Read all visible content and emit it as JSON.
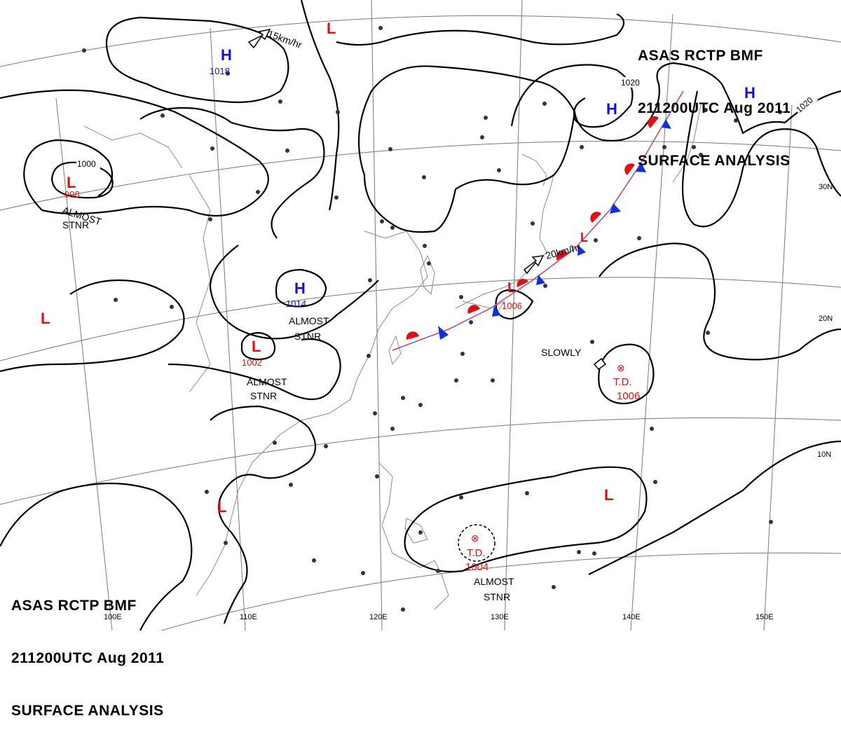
{
  "header": {
    "line1": "ASAS    RCTP    BMF",
    "line2": "211200UTC    Aug    2011",
    "line3": "SURFACE  ANALYSIS"
  },
  "colors": {
    "high": "#1010e0",
    "low": "#e01010",
    "isobar": "#000000",
    "coast": "#888888",
    "grid": "#666666"
  },
  "lat_labels": [
    "30N",
    "20N",
    "10N"
  ],
  "lon_labels": [
    "100E",
    "110E",
    "120E",
    "130E",
    "140E",
    "150E"
  ],
  "isobar_labels": [
    "1020",
    "1020",
    "1000"
  ],
  "systems": {
    "high1": {
      "symbol": "H",
      "pressure": "1018"
    },
    "high2": {
      "symbol": "H",
      "pressure": "1014"
    },
    "high3": {
      "symbol": "H"
    },
    "high4": {
      "symbol": "H"
    },
    "low_tibet": {
      "symbol": "L",
      "pressure": "998",
      "note": "ALMOST STNR"
    },
    "low_mongolia": {
      "symbol": "L"
    },
    "low_west": {
      "symbol": "L"
    },
    "low_china": {
      "symbol": "L",
      "pressure": "1002",
      "note": "ALMOST STNR"
    },
    "low_japan": {
      "symbol": "L",
      "pressure": "1006"
    },
    "low_japan2": {
      "symbol": "L"
    },
    "low_indochina": {
      "symbol": "L"
    },
    "low_pacific": {
      "symbol": "L"
    },
    "td_east": {
      "type": "T.D.",
      "pressure": "1006",
      "motion": "SLOWLY"
    },
    "td_south": {
      "type": "T.D.",
      "pressure": "1004",
      "note": "ALMOST STNR"
    }
  },
  "notes": {
    "stnr_mid": "ALMOST STNR",
    "speed_north": "15km/hr",
    "speed_front": "20km/hr"
  }
}
